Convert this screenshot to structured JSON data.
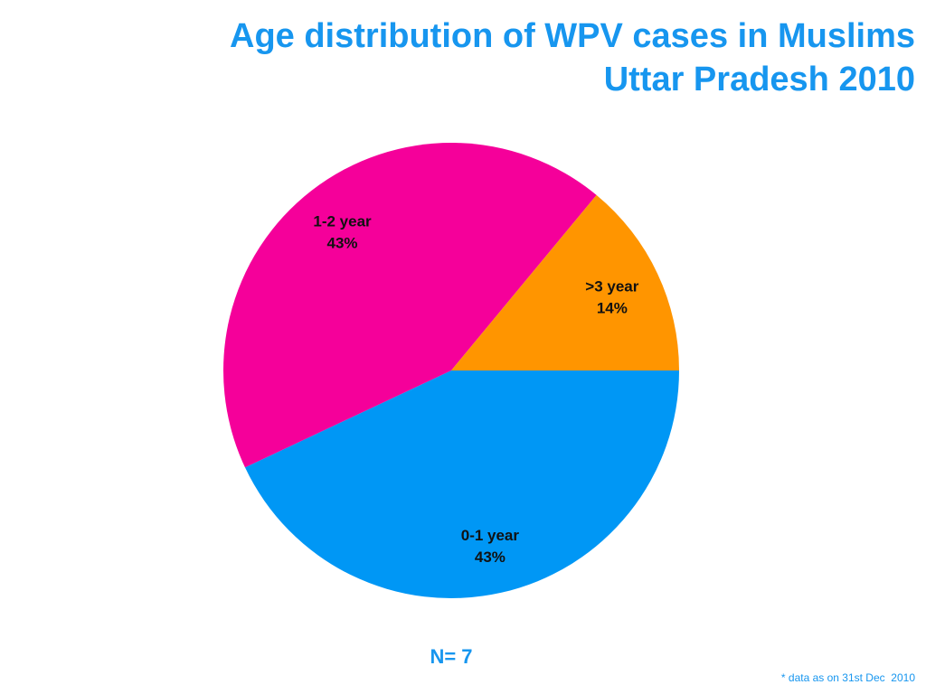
{
  "title": {
    "line1": "Age distribution of WPV cases in Muslims",
    "line2": "Uttar Pradesh 2010"
  },
  "colors": {
    "title": "#1796ef",
    "slice_0_1": "#0097f5",
    "slice_1_2": "#f5009a",
    "slice_3plus": "#ff9500"
  },
  "chart_data": {
    "type": "pie",
    "title": "Age distribution of WPV cases in Muslims Uttar Pradesh 2010",
    "slices": [
      {
        "label": "0-1 year",
        "value": 43,
        "value_label": "43%",
        "color": "#0097f5"
      },
      {
        "label": "1-2 year",
        "value": 43,
        "value_label": "43%",
        "color": "#f5009a"
      },
      {
        "label": ">3 year",
        "value": 14,
        "value_label": "14%",
        "color": "#ff9500"
      }
    ],
    "note": "N= 7",
    "footnote": "* data as on 31st Dec  2010"
  }
}
